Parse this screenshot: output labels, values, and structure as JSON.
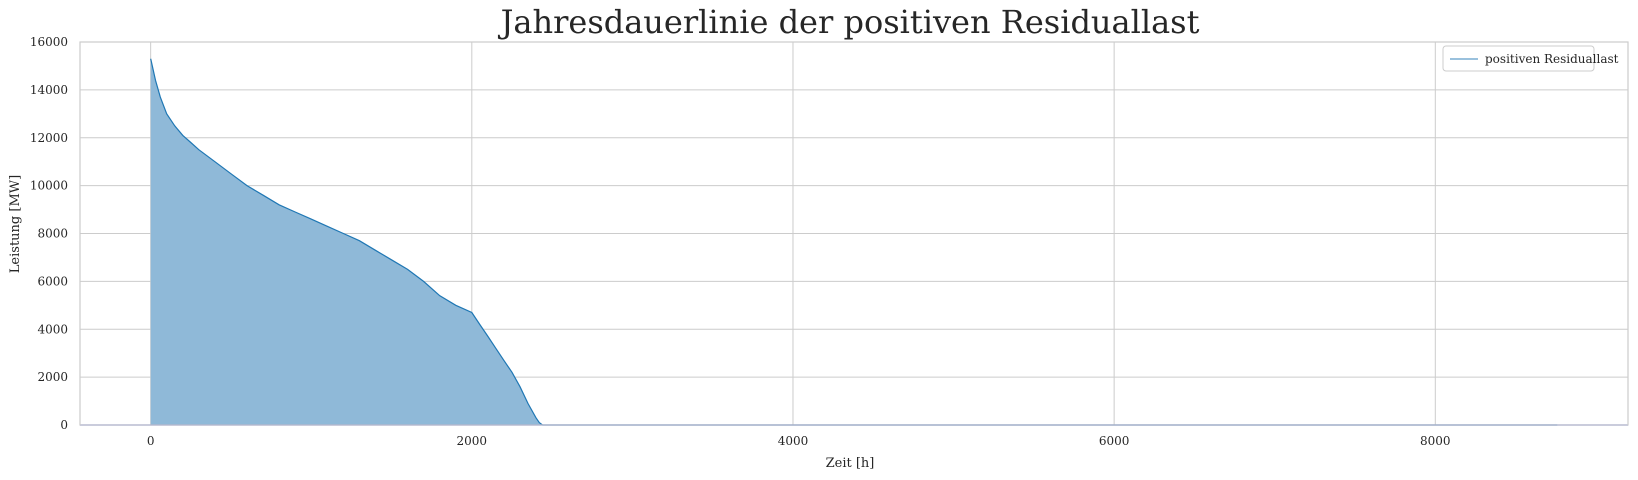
{
  "chart_data": {
    "type": "area",
    "title": "Jahresdauerlinie der positiven Residuallast",
    "xlabel": "Zeit [h]",
    "ylabel": "Leistung [MW]",
    "xlim": [
      -440,
      9200
    ],
    "ylim": [
      0,
      16000
    ],
    "x_ticks": [
      0,
      2000,
      4000,
      6000,
      8000
    ],
    "y_ticks": [
      0,
      2000,
      4000,
      6000,
      8000,
      10000,
      12000,
      14000,
      16000
    ],
    "grid": true,
    "legend_position": "top-right",
    "series": [
      {
        "name": "positiven Residuallast",
        "color": "#1f77b4",
        "fill_color": "#8fb9d8",
        "x": [
          0,
          10,
          30,
          60,
          100,
          150,
          200,
          250,
          300,
          400,
          500,
          600,
          700,
          800,
          900,
          1000,
          1100,
          1200,
          1300,
          1400,
          1500,
          1600,
          1700,
          1800,
          1900,
          2000,
          2050,
          2100,
          2150,
          2200,
          2250,
          2300,
          2350,
          2400,
          2420,
          2440,
          8760
        ],
        "values": [
          15300,
          15000,
          14400,
          13700,
          13000,
          12500,
          12100,
          11800,
          11500,
          11000,
          10500,
          10000,
          9600,
          9200,
          8900,
          8600,
          8300,
          8000,
          7700,
          7300,
          6900,
          6500,
          6000,
          5400,
          5000,
          4700,
          4200,
          3700,
          3200,
          2700,
          2200,
          1600,
          900,
          300,
          100,
          0,
          0
        ]
      }
    ]
  }
}
